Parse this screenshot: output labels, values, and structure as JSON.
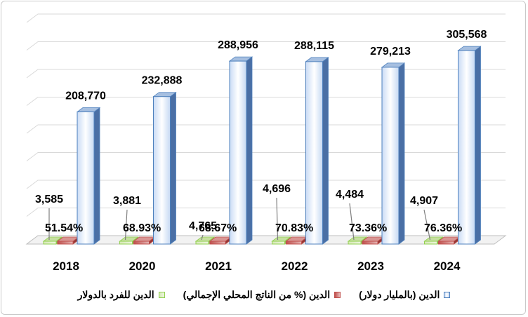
{
  "chart_data": {
    "type": "bar",
    "style": "3d-clustered",
    "categories": [
      "2018",
      "2020",
      "2021",
      "2022",
      "2023",
      "2024"
    ],
    "series": [
      {
        "name": "الدين للفرد بالدولار",
        "color": "#92d050",
        "values": [
          3585,
          3881,
          4765,
          4696,
          4484,
          4907
        ],
        "labels": [
          "3,585",
          "3,881",
          "4,765",
          "4,696",
          "4,484",
          "4,907"
        ]
      },
      {
        "name": "الدين (% من الناتج المحلي الإجمالي)",
        "color": "#c0504d",
        "values": [
          51.54,
          68.93,
          68.67,
          70.83,
          73.36,
          76.36
        ],
        "labels": [
          "51.54%",
          "68.93%",
          "68.67%",
          "70.83%",
          "73.36%",
          "76.36%"
        ]
      },
      {
        "name": "الدين (بالمليار دولار)",
        "color": "#4f81bd",
        "values": [
          208770,
          232888,
          288956,
          288115,
          279213,
          305568
        ],
        "labels": [
          "208,770",
          "232,888",
          "288,956",
          "288,115",
          "279,213",
          "305,568"
        ]
      }
    ],
    "ylim": [
      0,
      350000
    ],
    "grid": true,
    "legend": "bottom"
  }
}
